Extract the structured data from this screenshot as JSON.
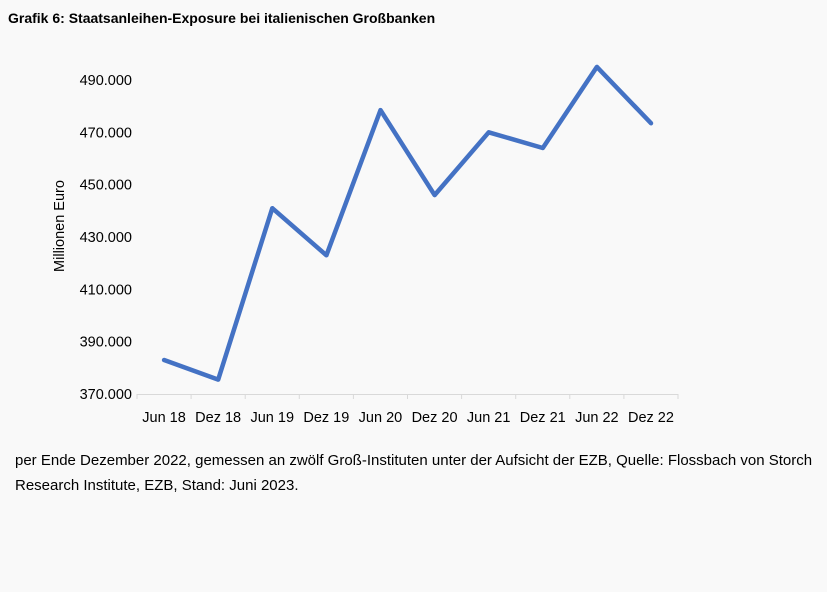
{
  "title": "Grafik 6: Staatsanleihen-Exposure bei italienischen Großbanken",
  "note": "per Ende Dezember 2022, gemessen an zwölf Groß-Instituten unter der Aufsicht der EZB, Quelle: Flossbach von Storch Research Institute, EZB, Stand: Juni 2023.",
  "chart_data": {
    "type": "line",
    "categories": [
      "Jun 18",
      "Dez 18",
      "Jun 19",
      "Dez 19",
      "Jun 20",
      "Dez 20",
      "Jun 21",
      "Dez 21",
      "Jun 22",
      "Dez 22"
    ],
    "values": [
      383000,
      375500,
      441000,
      423000,
      478500,
      446000,
      470000,
      464000,
      495000,
      473500
    ],
    "ylabel": "Millionen Euro",
    "ylim": [
      370000,
      490000
    ],
    "yticks": [
      370000,
      390000,
      410000,
      430000,
      450000,
      470000,
      490000
    ],
    "ytick_labels": [
      "370.000",
      "390.000",
      "410.000",
      "430.000",
      "450.000",
      "470.000",
      "490.000"
    ],
    "line_color": "#4472c4",
    "grid": false
  }
}
